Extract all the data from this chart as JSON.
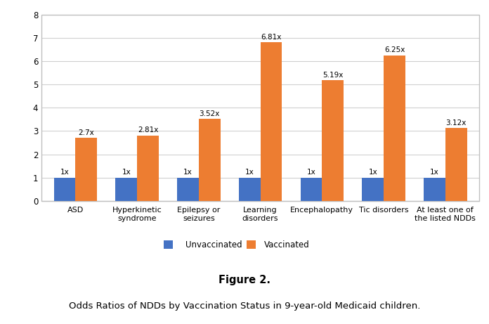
{
  "categories": [
    "ASD",
    "Hyperkinetic\nsyndrome",
    "Epilepsy or\nseizures",
    "Learning\ndisorders",
    "Encephalopathy",
    "Tic disorders",
    "At least one of\nthe listed NDDs"
  ],
  "unvaccinated": [
    1,
    1,
    1,
    1,
    1,
    1,
    1
  ],
  "vaccinated": [
    2.7,
    2.81,
    3.52,
    6.81,
    5.19,
    6.25,
    3.12
  ],
  "unvaccinated_labels": [
    "1x",
    "1x",
    "1x",
    "1x",
    "1x",
    "1x",
    "1x"
  ],
  "vaccinated_labels": [
    "2.7x",
    "2.81x",
    "3.52x",
    "6.81x",
    "5.19x",
    "6.25x",
    "3.12x"
  ],
  "unvaccinated_color": "#4472C4",
  "vaccinated_color": "#ED7D31",
  "ylim": [
    0,
    8
  ],
  "yticks": [
    0,
    1,
    2,
    3,
    4,
    5,
    6,
    7,
    8
  ],
  "legend_unvaccinated": "Unvaccinated",
  "legend_vaccinated": "Vaccinated",
  "figure_label": "Figure 2.",
  "caption": "Odds Ratios of NDDs by Vaccination Status in 9-year-old Medicaid children.",
  "bar_width": 0.35,
  "background_color": "#ffffff",
  "grid_color": "#d0d0d0",
  "border_color": "#c0c0c0"
}
